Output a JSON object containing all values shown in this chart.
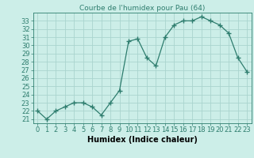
{
  "x": [
    0,
    1,
    2,
    3,
    4,
    5,
    6,
    7,
    8,
    9,
    10,
    11,
    12,
    13,
    14,
    15,
    16,
    17,
    18,
    19,
    20,
    21,
    22,
    23
  ],
  "y": [
    22.0,
    21.0,
    22.0,
    22.5,
    23.0,
    23.0,
    22.5,
    21.5,
    23.0,
    24.5,
    30.5,
    30.8,
    28.5,
    27.5,
    31.0,
    32.5,
    33.0,
    33.0,
    33.5,
    33.0,
    32.5,
    31.5,
    28.5,
    26.8
  ],
  "line_color": "#2e7d6e",
  "marker": "+",
  "marker_size": 4,
  "bg_color": "#cceee8",
  "grid_color": "#aad4ce",
  "title": "Courbe de l'humidex pour Pau (64)",
  "xlabel": "Humidex (Indice chaleur)",
  "xlim": [
    -0.5,
    23.5
  ],
  "ylim": [
    20.5,
    34.0
  ],
  "yticks": [
    21,
    22,
    23,
    24,
    25,
    26,
    27,
    28,
    29,
    30,
    31,
    32,
    33
  ],
  "xticks": [
    0,
    1,
    2,
    3,
    4,
    5,
    6,
    7,
    8,
    9,
    10,
    11,
    12,
    13,
    14,
    15,
    16,
    17,
    18,
    19,
    20,
    21,
    22,
    23
  ],
  "title_fontsize": 6.5,
  "label_fontsize": 7,
  "tick_fontsize": 6
}
